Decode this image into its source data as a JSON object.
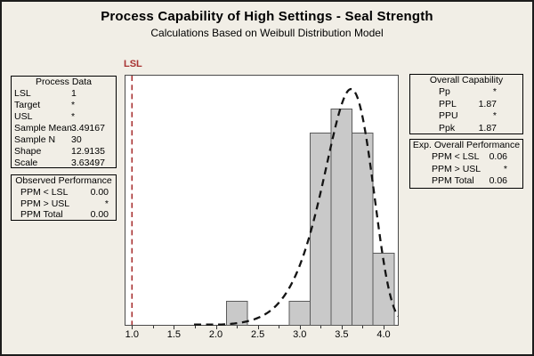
{
  "title": "Process Capability of High Settings - Seal Strength",
  "subtitle": "Calculations Based on Weibull Distribution Model",
  "colors": {
    "background": "#F1EEE6",
    "plot_background": "#FFFFFF",
    "plot_frame": "#4A4A4A",
    "bar_fill": "#C9C9C9",
    "bar_border": "#5A5A5A",
    "curve": "#141414",
    "spec_line_red": "#A83232"
  },
  "panels": {
    "process_data": {
      "title": "Process Data",
      "rows": [
        {
          "label": "LSL",
          "value": "1"
        },
        {
          "label": "Target",
          "value": "*"
        },
        {
          "label": "USL",
          "value": "*"
        },
        {
          "label": "Sample Mean",
          "value": "3.49167"
        },
        {
          "label": "Sample N",
          "value": "30"
        },
        {
          "label": "Shape",
          "value": "12.9135"
        },
        {
          "label": "Scale",
          "value": "3.63497"
        }
      ]
    },
    "observed_performance": {
      "title": "Observed Performance",
      "rows": [
        {
          "label": "PPM < LSL",
          "value": "0.00"
        },
        {
          "label": "PPM > USL",
          "value": "*"
        },
        {
          "label": "PPM Total",
          "value": "0.00"
        }
      ]
    },
    "overall_capability": {
      "title": "Overall Capability",
      "rows": [
        {
          "label": "Pp",
          "value": "*"
        },
        {
          "label": "PPL",
          "value": "1.87"
        },
        {
          "label": "PPU",
          "value": "*"
        },
        {
          "label": "Ppk",
          "value": "1.87"
        }
      ]
    },
    "exp_overall_performance": {
      "title": "Exp. Overall Performance",
      "rows": [
        {
          "label": "PPM < LSL",
          "value": "0.06"
        },
        {
          "label": "PPM > USL",
          "value": "*"
        },
        {
          "label": "PPM Total",
          "value": "0.06"
        }
      ]
    }
  },
  "chart_data": {
    "type": "bar",
    "subtype": "histogram-with-distribution-fit",
    "title": "Process Capability of High Settings - Seal Strength",
    "subtitle": "Calculations Based on Weibull Distribution Model",
    "xlabel": "",
    "ylabel": "",
    "y_axis_shown": false,
    "x_range": [
      0.915,
      4.18
    ],
    "x_ticks": [
      1.0,
      1.5,
      2.0,
      2.5,
      3.0,
      3.5,
      4.0
    ],
    "x_minor_ticks": [
      1.25,
      1.75,
      2.25,
      2.75,
      3.25,
      3.75
    ],
    "bin_width": 0.25,
    "sample_n": 30,
    "bins": [
      {
        "center": 2.25,
        "count": 1
      },
      {
        "center": 2.5,
        "count": 0
      },
      {
        "center": 2.75,
        "count": 0
      },
      {
        "center": 3.0,
        "count": 1
      },
      {
        "center": 3.25,
        "count": 8
      },
      {
        "center": 3.5,
        "count": 9
      },
      {
        "center": 3.75,
        "count": 8
      },
      {
        "center": 4.0,
        "count": 3
      }
    ],
    "fit_curve": {
      "distribution": "weibull",
      "shape": 12.9135,
      "scale": 3.63497,
      "line_style": "dashed",
      "draw_from_x": 1.74,
      "draw_to_x": 4.178
    },
    "spec_lines": [
      {
        "label": "LSL",
        "value": 1.0,
        "style": "dashed-red"
      }
    ]
  }
}
